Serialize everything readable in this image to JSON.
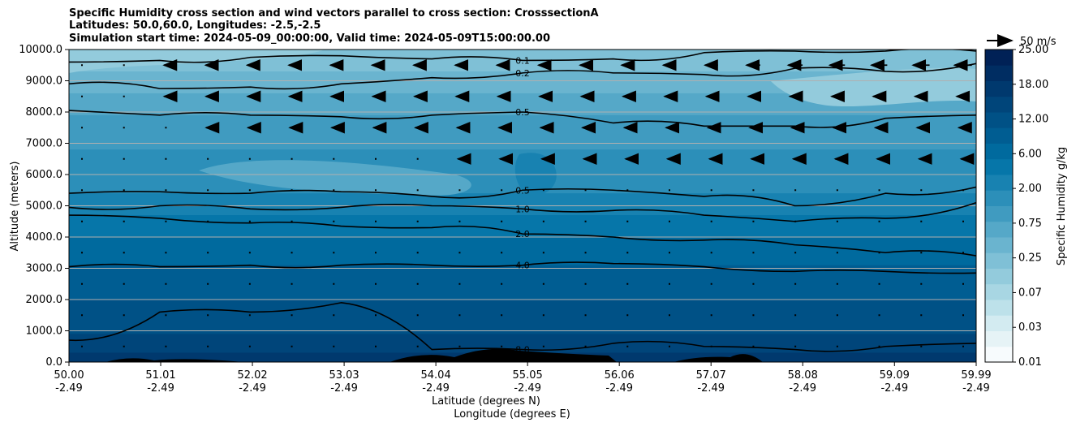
{
  "chart_data": {
    "type": "contour_cross_section",
    "title_lines": [
      "Specific Humidity cross section and wind vectors parallel to cross section: CrosssectionA",
      "Latitudes: 50.0,60.0, Longitudes: -2.5,-2.5",
      "Simulation start time: 2024-05-09_00:00:00, Valid time: 2024-05-09T15:00:00.00"
    ],
    "xlabel_lat": "Latitude (degrees N)",
    "xlabel_lon": "Longitude (degrees E)",
    "ylabel": "Altitude (meters)",
    "x_range": [
      50.0,
      59.99
    ],
    "y_range": [
      0,
      10000
    ],
    "x_ticks": [
      {
        "lat": "50.00",
        "lon": "-2.49"
      },
      {
        "lat": "51.01",
        "lon": "-2.49"
      },
      {
        "lat": "52.02",
        "lon": "-2.49"
      },
      {
        "lat": "53.03",
        "lon": "-2.49"
      },
      {
        "lat": "54.04",
        "lon": "-2.49"
      },
      {
        "lat": "55.05",
        "lon": "-2.49"
      },
      {
        "lat": "56.06",
        "lon": "-2.49"
      },
      {
        "lat": "57.07",
        "lon": "-2.49"
      },
      {
        "lat": "58.08",
        "lon": "-2.49"
      },
      {
        "lat": "59.09",
        "lon": "-2.49"
      },
      {
        "lat": "59.99",
        "lon": "-2.49"
      }
    ],
    "y_ticks": [
      "0.0",
      "1000.0",
      "2000.0",
      "3000.0",
      "4000.0",
      "5000.0",
      "6000.0",
      "7000.0",
      "8000.0",
      "9000.0",
      "10000.0"
    ],
    "colorbar": {
      "label": "Specific Humidity g/kg",
      "tick_labels": [
        "0.01",
        "0.03",
        "0.07",
        "0.25",
        "0.75",
        "2.00",
        "6.00",
        "12.00",
        "18.00",
        "25.00"
      ],
      "n_levels": 20
    },
    "quiver_key": "50 m/s",
    "contour_lines": [
      {
        "label": "0.1",
        "heights": [
          9600,
          9650,
          9750,
          9800,
          9700,
          9650,
          9700,
          9900,
          9950,
          9950,
          9950
        ]
      },
      {
        "label": "0.2",
        "heights": [
          8900,
          8750,
          8800,
          8900,
          9100,
          9250,
          9250,
          9200,
          9400,
          9300,
          9550
        ]
      },
      {
        "label": "0.5",
        "heights": [
          8050,
          7900,
          7900,
          7850,
          7900,
          8000,
          7650,
          7550,
          7550,
          7800,
          7900
        ]
      },
      {
        "label": "0.5",
        "heights": [
          5400,
          5450,
          5400,
          5450,
          5300,
          5500,
          5500,
          5300,
          5000,
          5400,
          5600
        ]
      },
      {
        "label": "1.0",
        "heights": [
          4950,
          5000,
          4900,
          4950,
          5000,
          4900,
          4850,
          4700,
          4500,
          4600,
          5100
        ]
      },
      {
        "label": "2.0",
        "heights": [
          4700,
          4600,
          4450,
          4350,
          4300,
          4100,
          4000,
          3900,
          3750,
          3500,
          3400
        ]
      },
      {
        "label": "4.0",
        "heights": [
          3050,
          3050,
          3100,
          3100,
          3100,
          3100,
          3150,
          3050,
          2900,
          2900,
          2850
        ]
      },
      {
        "label": "8.0",
        "heights": [
          700,
          1600,
          1600,
          1900,
          400,
          400,
          600,
          500,
          400,
          500,
          600
        ]
      }
    ],
    "terrain_note": "black terrain shading along surface"
  }
}
